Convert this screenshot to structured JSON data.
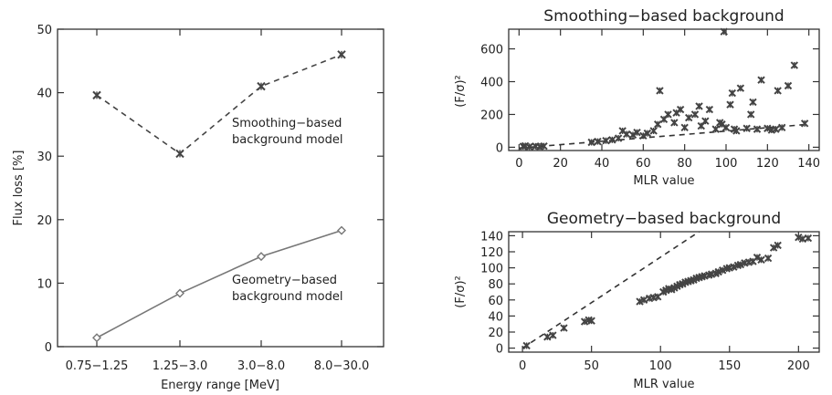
{
  "chart_data": [
    {
      "type": "line",
      "xlabel": "Energy range [MeV]",
      "ylabel": "Flux loss [%]",
      "categories": [
        "0.75−1.25",
        "1.25−3.0",
        "3.0−8.0",
        "8.0−30.0"
      ],
      "ylim": [
        0,
        50
      ],
      "yticks": [
        0,
        10,
        20,
        30,
        40,
        50
      ],
      "series": [
        {
          "values": [
            39.6,
            30.4,
            41.0,
            46.0
          ],
          "style": "dashed",
          "marker": "x",
          "color": "#444444"
        },
        {
          "values": [
            1.4,
            8.4,
            14.2,
            18.3
          ],
          "style": "solid",
          "marker": "diamond",
          "color": "#777777"
        }
      ],
      "annotations": [
        {
          "lines": [
            "Smoothing−based",
            "background model"
          ]
        },
        {
          "lines": [
            "Geometry−based",
            "background model"
          ]
        }
      ]
    },
    {
      "type": "scatter",
      "title": "Smoothing−based background",
      "xlabel": "MLR value",
      "ylabel": "(F/σ)²",
      "xlim": [
        -5,
        145
      ],
      "ylim": [
        -20,
        720
      ],
      "xticks": [
        0,
        20,
        40,
        60,
        80,
        100,
        120,
        140
      ],
      "yticks": [
        0,
        200,
        400,
        600
      ],
      "points": [
        [
          2,
          5
        ],
        [
          3,
          8
        ],
        [
          5,
          3
        ],
        [
          8,
          6
        ],
        [
          10,
          4
        ],
        [
          12,
          7
        ],
        [
          35,
          30
        ],
        [
          38,
          35
        ],
        [
          42,
          40
        ],
        [
          45,
          45
        ],
        [
          48,
          55
        ],
        [
          50,
          100
        ],
        [
          52,
          80
        ],
        [
          55,
          75
        ],
        [
          57,
          90
        ],
        [
          60,
          70
        ],
        [
          62,
          85
        ],
        [
          65,
          100
        ],
        [
          67,
          140
        ],
        [
          68,
          345
        ],
        [
          70,
          170
        ],
        [
          72,
          200
        ],
        [
          75,
          150
        ],
        [
          76,
          210
        ],
        [
          78,
          230
        ],
        [
          80,
          120
        ],
        [
          82,
          180
        ],
        [
          85,
          200
        ],
        [
          87,
          250
        ],
        [
          88,
          130
        ],
        [
          90,
          160
        ],
        [
          92,
          230
        ],
        [
          95,
          110
        ],
        [
          97,
          150
        ],
        [
          98,
          140
        ],
        [
          99,
          705
        ],
        [
          100,
          120
        ],
        [
          102,
          260
        ],
        [
          103,
          330
        ],
        [
          104,
          110
        ],
        [
          105,
          100
        ],
        [
          107,
          360
        ],
        [
          110,
          115
        ],
        [
          112,
          200
        ],
        [
          113,
          275
        ],
        [
          115,
          110
        ],
        [
          117,
          410
        ],
        [
          120,
          115
        ],
        [
          122,
          105
        ],
        [
          124,
          110
        ],
        [
          125,
          345
        ],
        [
          127,
          120
        ],
        [
          130,
          375
        ],
        [
          133,
          500
        ],
        [
          138,
          145
        ]
      ],
      "fit_line": [
        [
          0,
          -5
        ],
        [
          140,
          140
        ]
      ]
    },
    {
      "type": "scatter",
      "title": "Geometry−based background",
      "xlabel": "MLR value",
      "ylabel": "(F/σ)²",
      "xlim": [
        -10,
        215
      ],
      "ylim": [
        -5,
        145
      ],
      "xticks": [
        0,
        50,
        100,
        150,
        200
      ],
      "yticks": [
        0,
        20,
        40,
        60,
        80,
        100,
        120,
        140
      ],
      "points": [
        [
          3,
          3
        ],
        [
          18,
          14
        ],
        [
          22,
          16
        ],
        [
          30,
          25
        ],
        [
          45,
          33
        ],
        [
          48,
          35
        ],
        [
          50,
          34
        ],
        [
          85,
          58
        ],
        [
          88,
          60
        ],
        [
          92,
          62
        ],
        [
          95,
          63
        ],
        [
          98,
          64
        ],
        [
          102,
          70
        ],
        [
          104,
          72
        ],
        [
          106,
          74
        ],
        [
          108,
          73
        ],
        [
          110,
          75
        ],
        [
          112,
          77
        ],
        [
          114,
          79
        ],
        [
          116,
          80
        ],
        [
          118,
          82
        ],
        [
          120,
          83
        ],
        [
          122,
          84
        ],
        [
          124,
          85
        ],
        [
          126,
          87
        ],
        [
          128,
          88
        ],
        [
          130,
          89
        ],
        [
          132,
          90
        ],
        [
          135,
          91
        ],
        [
          137,
          92
        ],
        [
          140,
          93
        ],
        [
          142,
          95
        ],
        [
          145,
          97
        ],
        [
          148,
          99
        ],
        [
          150,
          100
        ],
        [
          153,
          101
        ],
        [
          156,
          103
        ],
        [
          158,
          104
        ],
        [
          161,
          106
        ],
        [
          164,
          107
        ],
        [
          167,
          108
        ],
        [
          170,
          113
        ],
        [
          173,
          110
        ],
        [
          178,
          112
        ],
        [
          182,
          125
        ],
        [
          185,
          128
        ],
        [
          200,
          138
        ],
        [
          203,
          136
        ],
        [
          207,
          137
        ]
      ],
      "fit_line": [
        [
          0,
          0
        ],
        [
          128,
          145
        ]
      ]
    }
  ]
}
